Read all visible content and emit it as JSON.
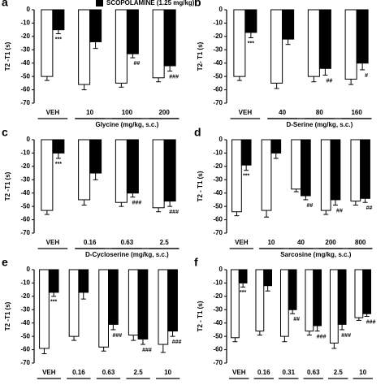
{
  "legend": {
    "label": "SCOPOLAMINE (1.25 mg/kg)",
    "color": "#000000"
  },
  "chart_data": [
    {
      "type": "bar",
      "panel": "a",
      "ylabel": "T2 -T1 (s)",
      "xlabel": "Glycine (mg/kg, s.c.)",
      "categories": [
        "VEH",
        "10",
        "100",
        "200"
      ],
      "ylim": [
        0,
        -70
      ],
      "yticks": [
        0,
        -10,
        -20,
        -30,
        -40,
        -50,
        -60,
        -70
      ],
      "series": [
        {
          "color": "#ffffff",
          "values": [
            -50,
            -56,
            -55,
            -51
          ],
          "errors": [
            3,
            4,
            3,
            3
          ]
        },
        {
          "color": "#000000",
          "values": [
            -15,
            -24,
            -33,
            -42
          ],
          "errors": [
            3,
            5,
            3,
            4
          ],
          "annotations": [
            "***",
            null,
            "##",
            "###"
          ]
        }
      ]
    },
    {
      "type": "bar",
      "panel": "b",
      "ylabel": "T2- T1 (s)",
      "xlabel": "D-Serine (mg/kg, s.c.)",
      "categories": [
        "VEH",
        "40",
        "80",
        "160"
      ],
      "ylim": [
        0,
        -70
      ],
      "yticks": [
        0,
        -10,
        -20,
        -30,
        -40,
        -50,
        -60,
        -70
      ],
      "series": [
        {
          "color": "#ffffff",
          "values": [
            -50,
            -55,
            -50,
            -52
          ],
          "errors": [
            3,
            4,
            4,
            4
          ]
        },
        {
          "color": "#000000",
          "values": [
            -17,
            -22,
            -44,
            -40
          ],
          "errors": [
            4,
            4,
            5,
            5
          ],
          "annotations": [
            "***",
            null,
            "##",
            "#"
          ]
        }
      ]
    },
    {
      "type": "bar",
      "panel": "c",
      "ylabel": "T2 -T1 (s)",
      "xlabel": "D-Cycloserine (mg/kg, s.c.)",
      "categories": [
        "VEH",
        "0.16",
        "0.63",
        "2.5"
      ],
      "ylim": [
        0,
        -70
      ],
      "yticks": [
        0,
        -10,
        -20,
        -30,
        -40,
        -50,
        -60,
        -70
      ],
      "series": [
        {
          "color": "#ffffff",
          "values": [
            -53,
            -45,
            -47,
            -51
          ],
          "errors": [
            3,
            4,
            3,
            3
          ]
        },
        {
          "color": "#000000",
          "values": [
            -10,
            -25,
            -40,
            -46
          ],
          "errors": [
            4,
            5,
            3,
            4
          ],
          "annotations": [
            "***",
            null,
            "###",
            "###"
          ]
        }
      ]
    },
    {
      "type": "bar",
      "panel": "d",
      "ylabel": "T2 - T1 (s)",
      "xlabel": "Sarcosine (mg/kg, s.c.)",
      "categories": [
        "VEH",
        "10",
        "40",
        "200",
        "800"
      ],
      "ylim": [
        0,
        -70
      ],
      "yticks": [
        0,
        -10,
        -20,
        -30,
        -40,
        -50,
        -60,
        -70
      ],
      "series": [
        {
          "color": "#ffffff",
          "values": [
            -54,
            -53,
            -37,
            -53,
            -46
          ],
          "errors": [
            3,
            5,
            2,
            3,
            3
          ]
        },
        {
          "color": "#000000",
          "values": [
            -19,
            -10,
            -42,
            -45,
            -44
          ],
          "errors": [
            4,
            4,
            3,
            4,
            3
          ],
          "annotations": [
            "***",
            null,
            "##",
            "##",
            "##"
          ]
        }
      ]
    },
    {
      "type": "bar",
      "panel": "e",
      "ylabel": "T2 -T1 (s)",
      "categories": [
        "VEH",
        "0.16",
        "0.63",
        "2.5",
        "10"
      ],
      "ylim": [
        0,
        -70
      ],
      "yticks": [
        0,
        -10,
        -20,
        -30,
        -40,
        -50,
        -60,
        -70
      ],
      "series": [
        {
          "color": "#ffffff",
          "values": [
            -59,
            -50,
            -58,
            -49,
            -56
          ],
          "errors": [
            4,
            3,
            3,
            4,
            6
          ]
        },
        {
          "color": "#000000",
          "values": [
            -17,
            -17,
            -41,
            -52,
            -46
          ],
          "errors": [
            3,
            5,
            4,
            4,
            4
          ],
          "annotations": [
            "***",
            null,
            "###",
            "###",
            "###"
          ]
        }
      ]
    },
    {
      "type": "bar",
      "panel": "f",
      "ylabel": "T2 - T1 (s)",
      "categories": [
        "VEH",
        "0.16",
        "0.31",
        "0.63",
        "2.5",
        "10"
      ],
      "ylim": [
        0,
        -70
      ],
      "yticks": [
        0,
        -10,
        -20,
        -30,
        -40,
        -50,
        -60,
        -70
      ],
      "series": [
        {
          "color": "#ffffff",
          "values": [
            -51,
            -46,
            -50,
            -46,
            -55,
            -36
          ],
          "errors": [
            3,
            3,
            4,
            3,
            4,
            2
          ]
        },
        {
          "color": "#000000",
          "values": [
            -10,
            -12,
            -30,
            -42,
            -41,
            -33
          ],
          "errors": [
            3,
            4,
            3,
            4,
            4,
            2
          ],
          "annotations": [
            "***",
            null,
            "##",
            "###",
            "###",
            "###"
          ]
        }
      ]
    }
  ]
}
